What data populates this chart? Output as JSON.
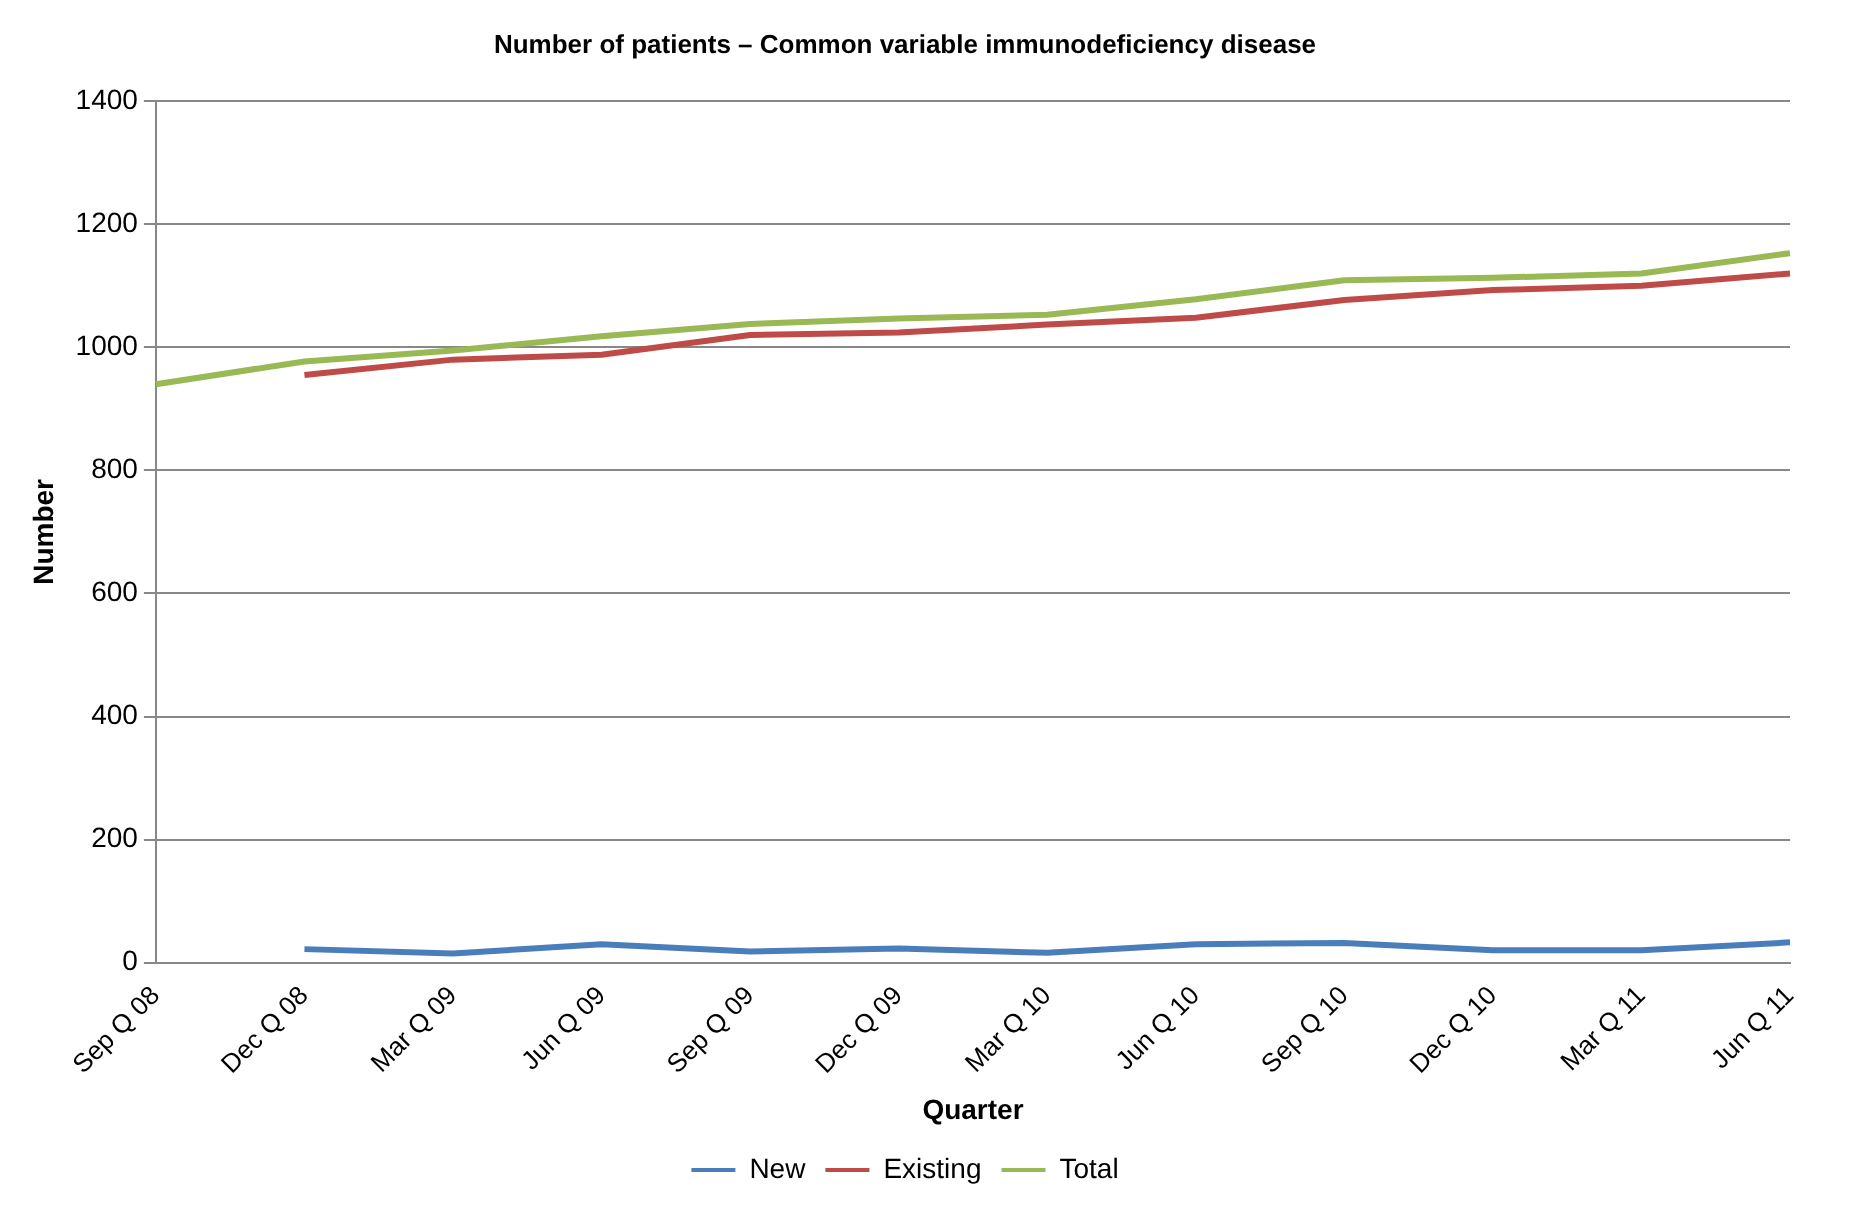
{
  "chart_data": {
    "type": "line",
    "title": "Number of patients – Common variable immunodeficiency disease",
    "xlabel": "Quarter",
    "ylabel": "Number",
    "categories": [
      "Sep Q 08",
      "Dec Q 08",
      "Mar Q 09",
      "Jun Q 09",
      "Sep Q 09",
      "Dec Q 09",
      "Mar Q 10",
      "Jun Q 10",
      "Sep Q 10",
      "Dec Q 10",
      "Mar Q 11",
      "Jun Q 11"
    ],
    "series": [
      {
        "name": "New",
        "color": "#4a7ebb",
        "values": [
          null,
          22,
          15,
          30,
          18,
          23,
          16,
          30,
          32,
          20,
          20,
          33
        ]
      },
      {
        "name": "Existing",
        "color": "#be4b48",
        "values": [
          null,
          955,
          980,
          988,
          1020,
          1024,
          1037,
          1048,
          1077,
          1093,
          1100,
          1120
        ]
      },
      {
        "name": "Total",
        "color": "#98b954",
        "values": [
          940,
          977,
          995,
          1018,
          1038,
          1047,
          1053,
          1078,
          1109,
          1113,
          1120,
          1153
        ]
      }
    ],
    "ylim": [
      0,
      1400
    ],
    "yticks": [
      0,
      200,
      400,
      600,
      800,
      1000,
      1200,
      1400
    ],
    "grid": "y",
    "legend": "bottom",
    "marker": "none",
    "line_style": "solid"
  }
}
